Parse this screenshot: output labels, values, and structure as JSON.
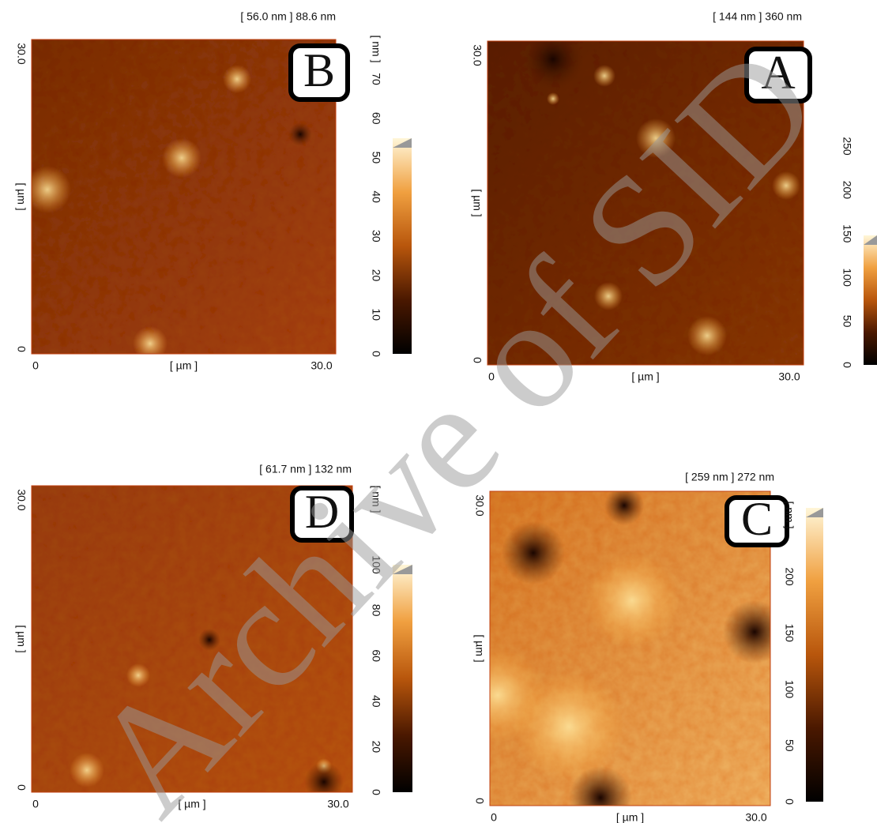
{
  "panels": [
    {
      "label": "B",
      "range": "[ 56.0 nm ] 88.6 nm",
      "y_axis": "[ µm ]",
      "x_axis": "[ µm ]",
      "x_ticks": [
        "0",
        "30.0"
      ],
      "y_ticks": [
        "0",
        "30.0"
      ],
      "colorbar_unit": "[ nm ]",
      "colorbar_ticks": [
        "0",
        "10",
        "20",
        "30",
        "40",
        "50",
        "60",
        "70"
      ]
    },
    {
      "label": "A",
      "range": "[ 144 nm ] 360 nm",
      "y_axis": "[ µm ]",
      "x_axis": "[ µm ]",
      "x_ticks": [
        "0",
        "30.0"
      ],
      "y_ticks": [
        "0",
        "30.0"
      ],
      "colorbar_ticks": [
        "0",
        "50",
        "100",
        "150",
        "200",
        "250"
      ]
    },
    {
      "label": "D",
      "range": "[ 61.7 nm ] 132 nm",
      "y_axis": "[ µm ]",
      "x_axis": "[ µm ]",
      "x_ticks": [
        "0",
        "30.0"
      ],
      "y_ticks": [
        "0",
        "30.0"
      ],
      "colorbar_unit": "[ nm ]",
      "colorbar_ticks": [
        "0",
        "20",
        "40",
        "60",
        "80",
        "100"
      ]
    },
    {
      "label": "C",
      "range": "[ 259 nm ] 272 nm",
      "y_axis": "[ µm ]",
      "x_axis": "[ µm ]",
      "x_ticks": [
        "0",
        "30.0"
      ],
      "y_ticks": [
        "0",
        "30.0"
      ],
      "colorbar_unit": "[ nm ]",
      "colorbar_ticks": [
        "0",
        "50",
        "100",
        "150",
        "200"
      ]
    }
  ],
  "watermark": "Archive of SID"
}
